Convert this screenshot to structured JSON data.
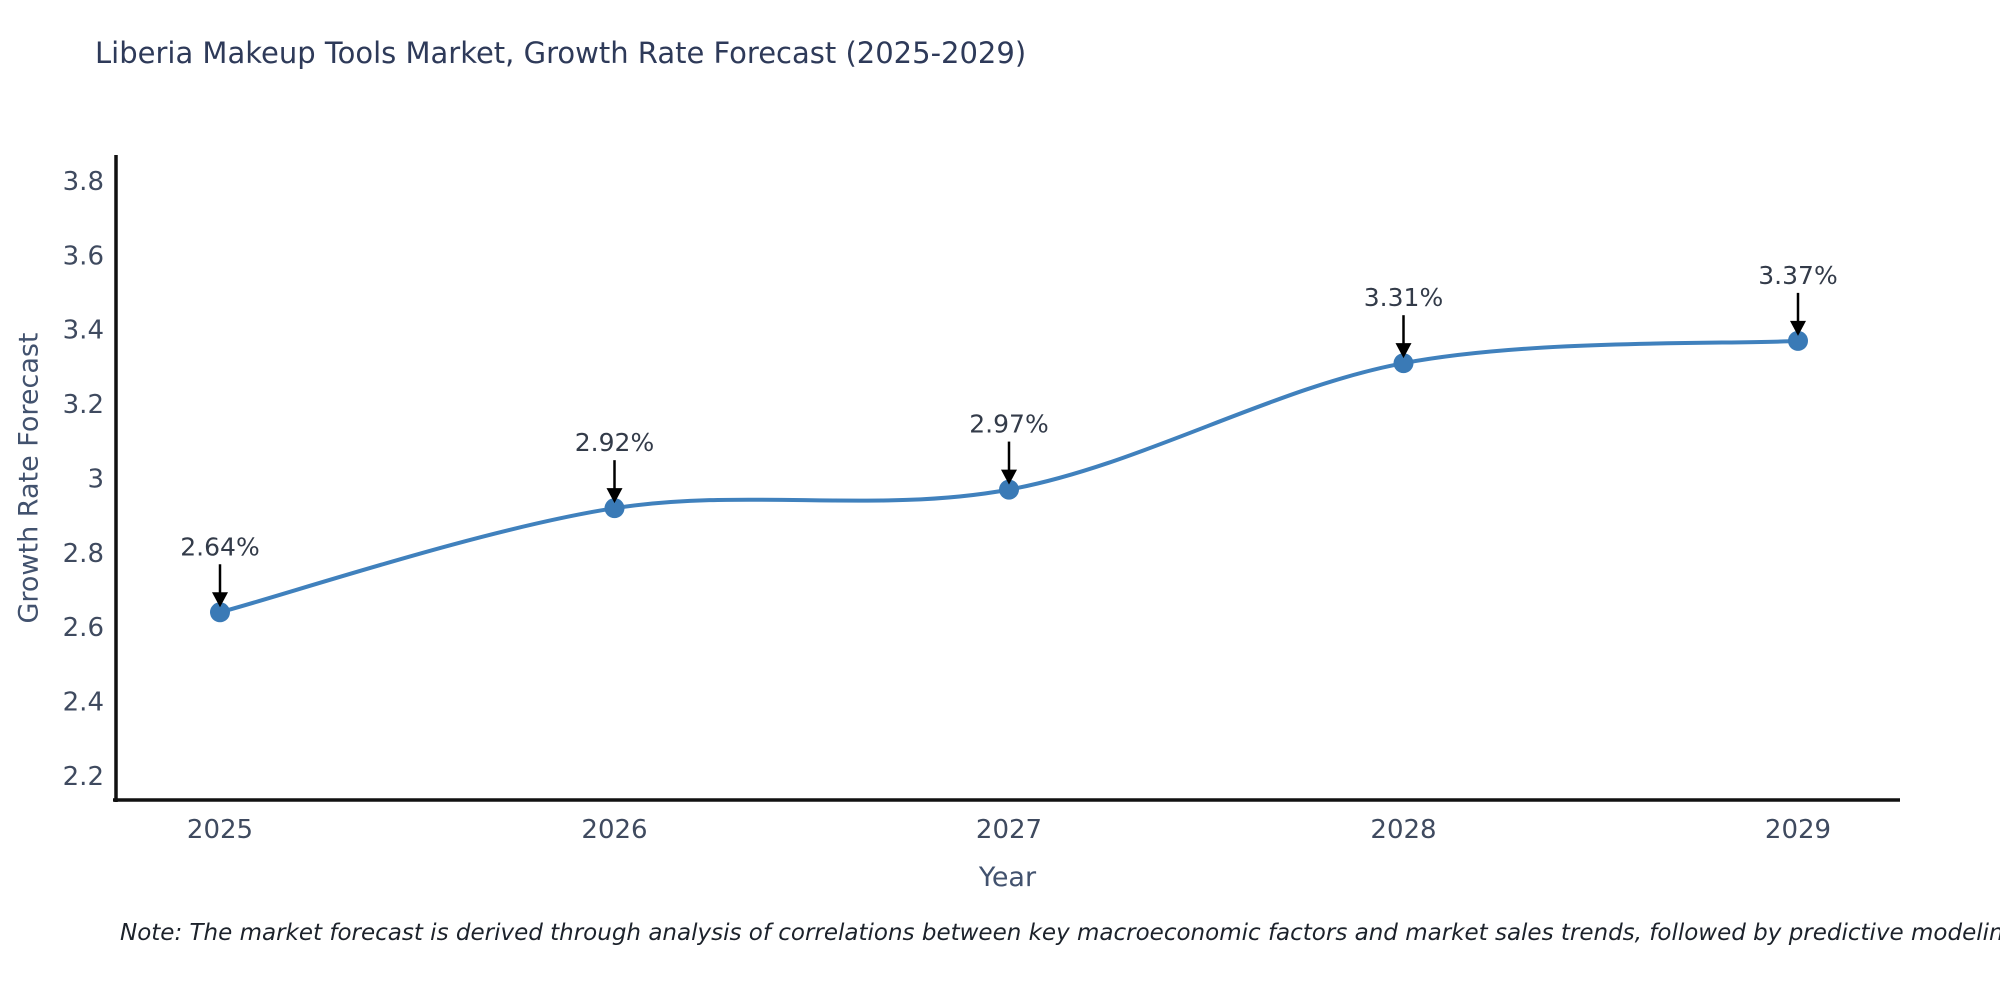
{
  "title": "Liberia Makeup Tools Market, Growth Rate Forecast (2025-2029)",
  "note": "Note: The market forecast is derived through analysis of correlations between key macroeconomic factors and market sales trends, followed by predictive modeling to project future sales",
  "chart_data": {
    "type": "line",
    "categories": [
      "2025",
      "2026",
      "2027",
      "2028",
      "2029"
    ],
    "values": [
      2.64,
      2.92,
      2.97,
      3.31,
      3.37
    ],
    "point_labels": [
      "2.64%",
      "2.92%",
      "2.97%",
      "3.31%",
      "3.37%"
    ],
    "title": "Liberia Makeup Tools Market, Growth Rate Forecast (2025-2029)",
    "xlabel": "Year",
    "ylabel": "Growth Rate Forecast",
    "ylim": [
      2.135,
      3.87
    ],
    "yticks": [
      2.2,
      2.4,
      2.6,
      2.8,
      3,
      3.2,
      3.4,
      3.6,
      3.8
    ],
    "line_shape": "spline",
    "grid": false,
    "legend_position": "none",
    "line_color": "#4081bd",
    "marker_color": "#3a7ab6",
    "arrow_color": "#000000",
    "spine_color": "#111111"
  }
}
